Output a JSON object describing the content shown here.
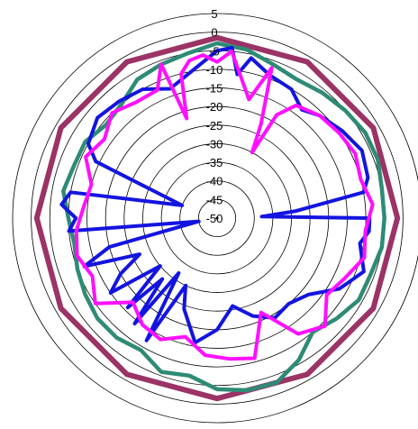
{
  "chart_data": {
    "type": "line",
    "subtype": "polar",
    "radial_range": [
      -50,
      5
    ],
    "radial_ticks": [
      5,
      0,
      -5,
      -10,
      -15,
      -20,
      -25,
      -30,
      -35,
      -40,
      -45,
      -50
    ],
    "radial_tick_labels": [
      "5",
      "0",
      "-5",
      "-10",
      "-15",
      "-20",
      "-25",
      "-30",
      "-35",
      "-40",
      "-45",
      "-50"
    ],
    "grid": true,
    "legend": "none",
    "angle_zero": "top",
    "angle_direction": "clockwise",
    "series": [
      {
        "color": "#9b3366",
        "theta": [
          0,
          30,
          60,
          90,
          120,
          150,
          180,
          210,
          240,
          270,
          300,
          330,
          360
        ],
        "r": [
          -1.5,
          -1.5,
          -1.5,
          -1.5,
          -1.5,
          -1.5,
          -1.5,
          -1.5,
          -1.5,
          -1.5,
          -1.5,
          -1.5,
          -1.5
        ]
      },
      {
        "color": "#2e8b75",
        "theta": [
          0,
          10,
          20,
          30,
          40,
          50,
          60,
          70,
          80,
          90,
          100,
          110,
          120,
          130,
          140,
          150,
          160,
          170,
          180,
          190,
          200,
          210,
          220,
          230,
          240,
          250,
          260,
          270,
          280,
          290,
          300,
          310,
          320,
          330,
          340,
          350,
          360
        ],
        "r": [
          -3,
          -4,
          -6,
          -7,
          -6,
          -5,
          -4,
          -4,
          -5,
          -5,
          -5,
          -6,
          -6,
          -8,
          -10,
          -6,
          -3,
          -3,
          -4,
          -7,
          -6,
          -9,
          -8,
          -8,
          -9,
          -10,
          -11,
          -10,
          -8,
          -9,
          -9,
          -11,
          -10,
          -7,
          -6,
          -5,
          -3
        ]
      },
      {
        "color": "#1414e0",
        "theta": [
          0,
          5,
          8,
          12,
          20,
          30,
          38,
          45,
          55,
          65,
          75,
          80,
          85,
          88,
          90,
          92,
          95,
          100,
          110,
          120,
          130,
          140,
          150,
          160,
          170,
          180,
          190,
          200,
          205,
          210,
          215,
          218,
          222,
          225,
          230,
          235,
          240,
          245,
          250,
          255,
          260,
          265,
          270,
          275,
          280,
          290,
          295,
          300,
          310,
          320,
          330,
          340,
          350,
          360
        ],
        "r": [
          -5,
          -4,
          -11,
          -6,
          -9,
          -10,
          -13,
          -11,
          -9,
          -7,
          -8,
          -10,
          -29,
          -38,
          -9,
          -9,
          -9,
          -11,
          -8,
          -12,
          -18,
          -20,
          -19,
          -22,
          -26,
          -20,
          -16,
          -24,
          -30,
          -12,
          -32,
          -14,
          -28,
          -16,
          -30,
          -15,
          -20,
          -27,
          -12,
          -20,
          -45,
          -10,
          -12,
          -8,
          -10,
          -40,
          -14,
          -10,
          -8,
          -9,
          -10,
          -13,
          -10,
          -5
        ]
      },
      {
        "color": "#ff10ff",
        "theta": [
          0,
          5,
          10,
          15,
          20,
          25,
          28,
          30,
          35,
          45,
          55,
          65,
          75,
          85,
          95,
          105,
          115,
          125,
          135,
          145,
          155,
          165,
          175,
          185,
          195,
          205,
          215,
          225,
          235,
          245,
          255,
          265,
          275,
          285,
          295,
          305,
          315,
          325,
          335,
          340,
          343,
          346,
          350,
          355,
          360
        ],
        "r": [
          -8,
          -5,
          -12,
          -17,
          -7,
          -22,
          -30,
          -18,
          -13,
          -11,
          -10,
          -9,
          -10,
          -8,
          -10,
          -9,
          -12,
          -14,
          -9,
          -12,
          -22,
          -11,
          -12,
          -13,
          -17,
          -14,
          -15,
          -18,
          -10,
          -13,
          -11,
          -12,
          -14,
          -15,
          -11,
          -13,
          -10,
          -12,
          -12,
          -6,
          -22,
          -10,
          -7,
          -6,
          -8
        ]
      }
    ]
  }
}
